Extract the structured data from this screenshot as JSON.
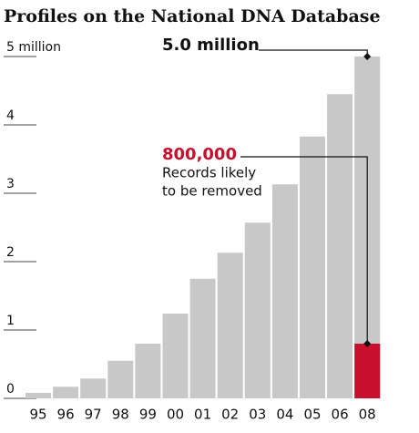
{
  "chart_data": {
    "type": "bar",
    "title": "Profiles on the National DNA Database",
    "categories": [
      "95",
      "96",
      "97",
      "98",
      "99",
      "00",
      "01",
      "02",
      "03",
      "04",
      "05",
      "06",
      "08"
    ],
    "series": [
      {
        "color": "#c8c8c8",
        "values": [
          0.08,
          0.17,
          0.29,
          0.55,
          0.8,
          1.24,
          1.75,
          2.13,
          2.57,
          3.13,
          3.83,
          4.45,
          5.0
        ],
        "value_labels": [
          null,
          null,
          null,
          null,
          null,
          null,
          null,
          null,
          null,
          null,
          null,
          null,
          "5.0 million"
        ]
      },
      {
        "color": "#c8102e",
        "values": [
          null,
          null,
          null,
          null,
          null,
          null,
          null,
          null,
          null,
          null,
          null,
          null,
          0.8
        ],
        "value_labels": [
          null,
          null,
          null,
          null,
          null,
          null,
          null,
          null,
          null,
          null,
          null,
          null,
          "800,000"
        ]
      }
    ],
    "annotation": [
      "Records likely",
      "to be removed"
    ],
    "ylim": [
      0,
      5
    ],
    "yticks": [
      0,
      1,
      2,
      3,
      4,
      {
        "value": 5,
        "label": "5 million"
      }
    ]
  }
}
